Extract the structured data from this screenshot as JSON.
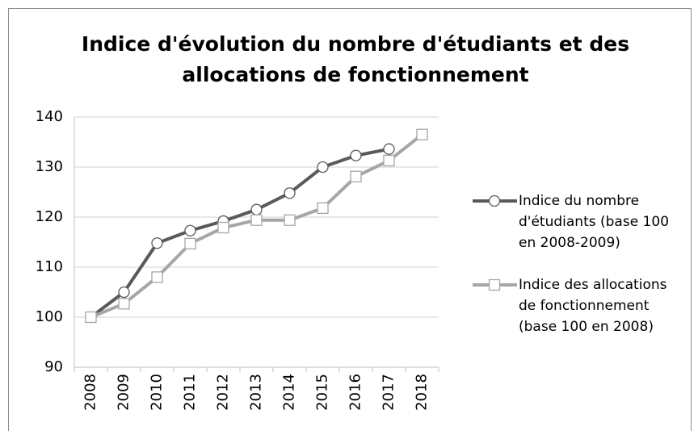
{
  "chart_data": {
    "type": "line",
    "title": "Indice d'évolution du nombre d'étudiants et des allocations de fonctionnement",
    "categories": [
      "2008",
      "2009",
      "2010",
      "2011",
      "2012",
      "2013",
      "2014",
      "2015",
      "2016",
      "2017",
      "2018"
    ],
    "series": [
      {
        "name": "Indice du nombre d'étudiants (base 100 en 2008-2009)",
        "color": "#595959",
        "marker": "circle",
        "values": [
          100,
          105,
          114.8,
          117.3,
          119.2,
          121.5,
          124.8,
          130,
          132.3,
          133.6,
          null
        ]
      },
      {
        "name": "Indice des allocations de fonctionnement (base 100 en 2008)",
        "color": "#a6a6a6",
        "marker": "square",
        "values": [
          100,
          102.7,
          108,
          114.7,
          117.9,
          119.4,
          119.4,
          121.8,
          128.1,
          131.3,
          136.5
        ]
      }
    ],
    "ylim": [
      90,
      140
    ],
    "yticks": [
      90,
      100,
      110,
      120,
      130,
      140
    ],
    "grid": true,
    "legend": "right"
  }
}
